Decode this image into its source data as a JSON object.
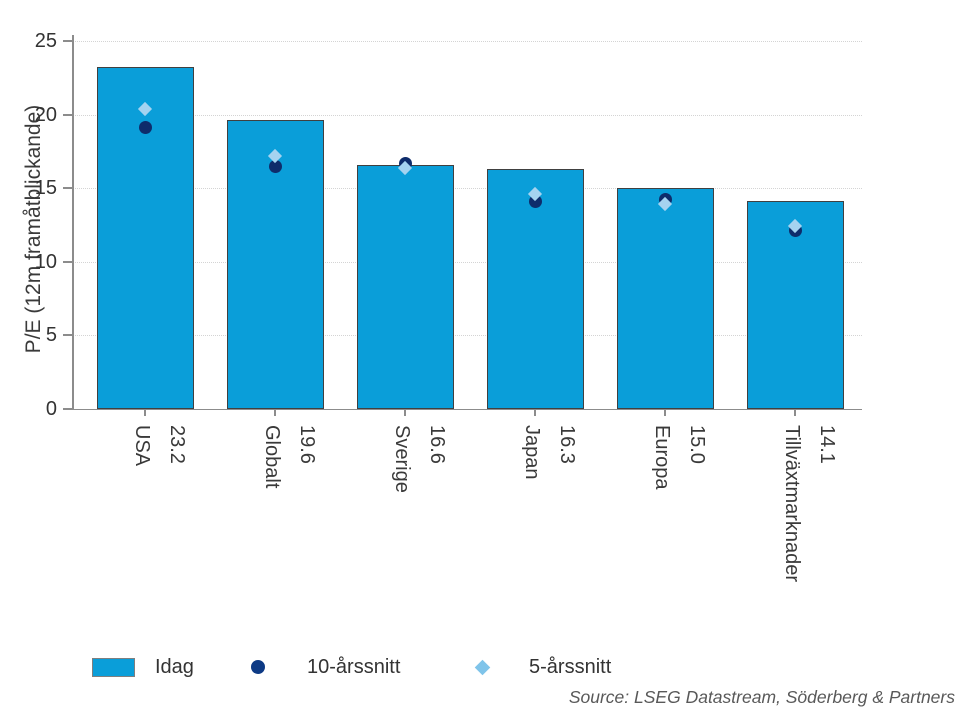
{
  "figure": {
    "ylabel": "P/E (12m framåtblickande)",
    "source": "Source: LSEG Datastream, Söderberg & Partners"
  },
  "legend": {
    "items": [
      {
        "label": "Idag",
        "swatch": "bar-swatch"
      },
      {
        "label": "10-årssnitt",
        "swatch": "circle-swatch"
      },
      {
        "label": "5-årssnitt",
        "swatch": "diamond-swatch"
      }
    ]
  },
  "colors": {
    "bar_fill": "#0a9ed9",
    "bar_border": "#404040",
    "circle_marker": "#0e2c6b",
    "diamond_marker": "#a5d3f0",
    "legend_circle": "#0d3a85",
    "legend_diamond": "#7fc4ea",
    "gridline": "#d4d4d4",
    "axis": "#8c8c8c",
    "text": "#333333",
    "source_text": "#595959"
  },
  "chart_data": {
    "type": "bar",
    "title": "",
    "xlabel": "",
    "ylabel": "P/E (12m framåtblickande)",
    "categories": [
      "USA",
      "Globalt",
      "Sverige",
      "Japan",
      "Europa",
      "Tillväxtmarknader"
    ],
    "category_value_labels": [
      "23.2",
      "19.6",
      "16.6",
      "16.3",
      "15.0",
      "14.1"
    ],
    "series": [
      {
        "name": "Idag",
        "type": "bar",
        "values": [
          23.2,
          19.6,
          16.6,
          16.3,
          15.0,
          14.1
        ]
      },
      {
        "name": "10-årssnitt",
        "type": "point-circle",
        "values": [
          19.1,
          16.5,
          16.7,
          14.1,
          14.2,
          12.1
        ]
      },
      {
        "name": "5-årssnitt",
        "type": "point-diamond",
        "values": [
          20.4,
          17.2,
          16.4,
          14.6,
          13.9,
          12.4
        ]
      }
    ],
    "ylim": [
      0,
      25
    ],
    "yticks": [
      0,
      5,
      10,
      15,
      20,
      25
    ],
    "grid": "horizontal-dotted",
    "legend_position": "bottom",
    "x_labels_rotated": true
  }
}
